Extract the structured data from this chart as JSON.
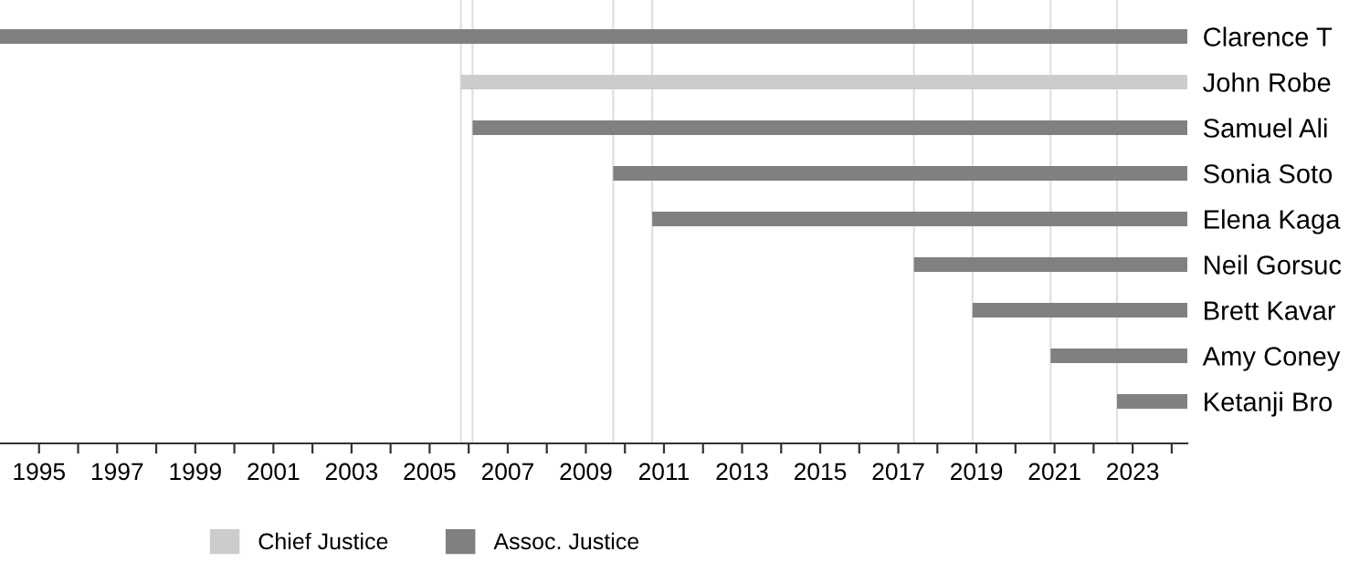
{
  "chart_data": {
    "type": "bar",
    "orientation": "horizontal",
    "categories": [
      "Clarence T",
      "John Robe",
      "Samuel Ali",
      "Sonia Soto",
      "Elena Kaga",
      "Neil Gorsuc",
      "Brett Kavar",
      "Amy Coney",
      "Ketanji Bro"
    ],
    "series": [
      {
        "name": "Chief Justice",
        "color": "#cccccc",
        "base": [
          null,
          2005.8,
          null,
          null,
          null,
          null,
          null,
          null,
          null
        ],
        "values": [
          null,
          18.6,
          null,
          null,
          null,
          null,
          null,
          null,
          null
        ]
      },
      {
        "name": "Assoc. Justice",
        "color": "#808080",
        "base": [
          1994.0,
          null,
          2006.1,
          2009.7,
          2010.7,
          2017.4,
          2018.9,
          2020.9,
          2022.6
        ],
        "values": [
          30.4,
          null,
          18.3,
          14.7,
          13.7,
          7.0,
          5.5,
          3.5,
          1.8
        ]
      }
    ],
    "xlim": [
      1994.0,
      2024.4
    ],
    "xticks": [
      1995,
      {
        "value": 1996,
        "label": null
      },
      1997,
      {
        "value": 1998,
        "label": null
      },
      1999,
      {
        "value": 2000,
        "label": null
      },
      2001,
      {
        "value": 2002,
        "label": null
      },
      2003,
      {
        "value": 2004,
        "label": null
      },
      2005,
      {
        "value": 2006,
        "label": null
      },
      2007,
      {
        "value": 2008,
        "label": null
      },
      2009,
      {
        "value": 2010,
        "label": null
      },
      2011,
      {
        "value": 2012,
        "label": null
      },
      2013,
      {
        "value": 2014,
        "label": null
      },
      2015,
      {
        "value": 2016,
        "label": null
      },
      2017,
      {
        "value": 2018,
        "label": null
      },
      2019,
      {
        "value": 2020,
        "label": null
      },
      2021,
      {
        "value": 2022,
        "label": null
      },
      2023,
      {
        "value": 2024,
        "label": null
      }
    ],
    "ref_lines": [
      {
        "axis": "x",
        "value": 2005.8,
        "color": "#e0e0e0"
      },
      {
        "axis": "x",
        "value": 2006.1,
        "color": "#e0e0e0"
      },
      {
        "axis": "x",
        "value": 2009.7,
        "color": "#e0e0e0"
      },
      {
        "axis": "x",
        "value": 2010.7,
        "color": "#e0e0e0"
      },
      {
        "axis": "x",
        "value": 2017.4,
        "color": "#e0e0e0"
      },
      {
        "axis": "x",
        "value": 2018.9,
        "color": "#e0e0e0"
      },
      {
        "axis": "x",
        "value": 2020.9,
        "color": "#e0e0e0"
      },
      {
        "axis": "x",
        "value": 2022.6,
        "color": "#e0e0e0"
      }
    ],
    "legend": "bottom",
    "grid": false
  }
}
